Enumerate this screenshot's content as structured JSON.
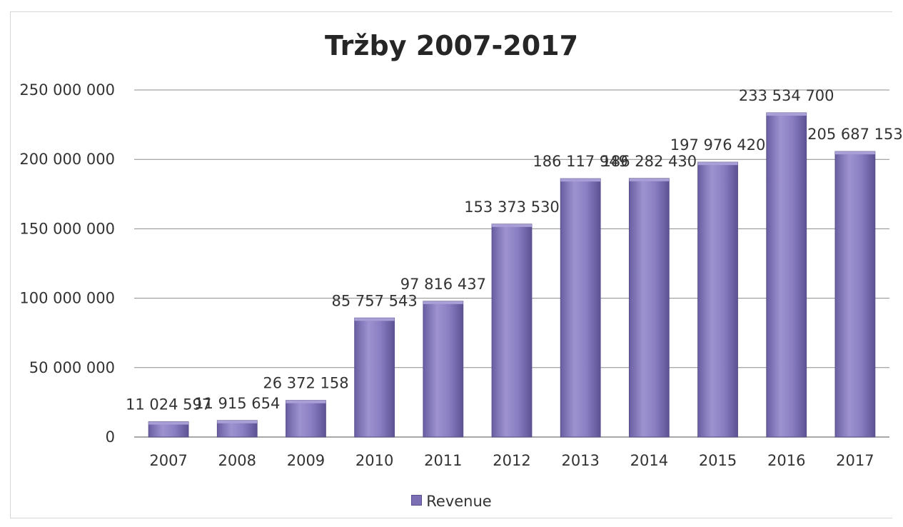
{
  "chart_data": {
    "type": "bar",
    "title": "Tržby 2007-2017",
    "xlabel": "",
    "ylabel": "",
    "categories": [
      "2007",
      "2008",
      "2009",
      "2010",
      "2011",
      "2012",
      "2013",
      "2014",
      "2015",
      "2016",
      "2017"
    ],
    "series": [
      {
        "name": "Revenue",
        "values": [
          11024597,
          11915654,
          26372158,
          85757543,
          97816437,
          153373530,
          186117949,
          186282430,
          197976420,
          233534700,
          205687153
        ],
        "value_labels": [
          "11 024 597",
          "11 915 654",
          "26 372 158",
          "85 757 543",
          "97 816 437",
          "153 373 530",
          "186 117 949",
          "186 282 430",
          "197 976 420",
          "233 534 700",
          "205 687 153"
        ]
      }
    ],
    "ylim": [
      0,
      250000000
    ],
    "yticks": [
      0,
      50000000,
      100000000,
      150000000,
      200000000,
      250000000
    ],
    "ytick_labels": [
      "0",
      "50 000 000",
      "100 000 000",
      "150 000 000",
      "200 000 000",
      "250 000 000"
    ],
    "grid": true,
    "legend_position": "bottom",
    "colors": {
      "bar": "#7c6fb3",
      "bar_dark": "#5a4f8c",
      "bar_light": "#a99fd6",
      "grid": "#8c8c8c"
    }
  },
  "legend": {
    "label": "Revenue"
  }
}
